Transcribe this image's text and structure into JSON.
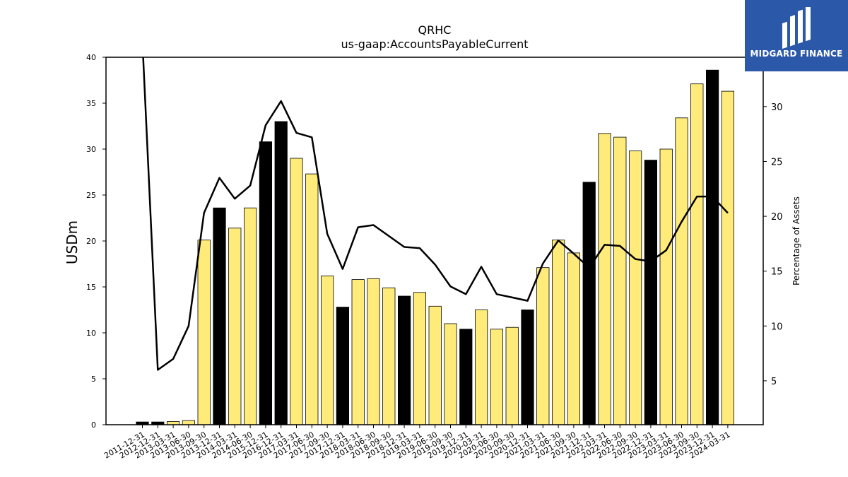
{
  "chart_data": {
    "type": "bar",
    "title": "QRHC",
    "subtitle": "us-gaap:AccountsPayableCurrent",
    "ylabel": "USDm",
    "y2label": "Percentage of Assets",
    "ylim": [
      0,
      40
    ],
    "y2lim": [
      1,
      34.5
    ],
    "yticks": [
      0,
      5,
      10,
      15,
      20,
      25,
      30,
      35,
      40
    ],
    "y2ticks": [
      5,
      10,
      15,
      20,
      25,
      30
    ],
    "categories": [
      "2011-12-31",
      "2012-12-31",
      "2013-03-31",
      "2013-06-30",
      "2013-09-30",
      "2013-12-31",
      "2014-03-31",
      "2014-06-30",
      "2015-12-31",
      "2016-12-31",
      "2017-03-31",
      "2017-06-30",
      "2017-09-30",
      "2017-12-31",
      "2018-03-31",
      "2018-06-30",
      "2018-09-30",
      "2018-12-31",
      "2019-03-31",
      "2019-06-30",
      "2019-09-30",
      "2019-12-31",
      "2020-03-31",
      "2020-06-30",
      "2020-09-30",
      "2020-12-31",
      "2021-03-31",
      "2021-06-30",
      "2021-09-30",
      "2021-12-31",
      "2022-03-31",
      "2022-06-30",
      "2022-09-30",
      "2022-12-31",
      "2023-03-31",
      "2023-06-30",
      "2023-09-30",
      "2023-12-31",
      "2024-03-31"
    ],
    "series": [
      {
        "kind": "bar",
        "values": [
          0.3,
          0.3,
          0.35,
          0.45,
          20.1,
          23.6,
          21.4,
          23.6,
          30.8,
          33.0,
          29.0,
          27.3,
          16.2,
          12.8,
          15.8,
          15.9,
          14.9,
          14.0,
          14.4,
          12.9,
          11.0,
          10.4,
          12.5,
          10.4,
          10.6,
          12.5,
          17.1,
          20.1,
          18.7,
          26.4,
          31.7,
          31.3,
          29.8,
          28.8,
          30.0,
          33.4,
          37.1,
          38.6,
          36.3
        ],
        "annual": [
          true,
          true,
          false,
          false,
          false,
          true,
          false,
          false,
          true,
          true,
          false,
          false,
          false,
          true,
          false,
          false,
          false,
          true,
          false,
          false,
          false,
          true,
          false,
          false,
          false,
          true,
          false,
          false,
          false,
          true,
          false,
          false,
          false,
          true,
          false,
          false,
          false,
          true,
          false
        ]
      },
      {
        "kind": "line",
        "axis": "right",
        "values": [
          36.0,
          6.0,
          7.0,
          10.0,
          20.3,
          23.5,
          21.6,
          22.8,
          28.3,
          30.5,
          27.6,
          27.2,
          18.4,
          15.2,
          19.0,
          19.2,
          18.2,
          17.2,
          17.1,
          15.6,
          13.6,
          12.9,
          15.4,
          12.9,
          12.6,
          12.3,
          15.7,
          17.8,
          16.6,
          15.3,
          17.4,
          17.3,
          16.1,
          15.9,
          16.9,
          19.5,
          21.8,
          21.8,
          20.3
        ]
      }
    ],
    "colors": {
      "annual_bar": "#000000",
      "quarter_bar": "#ffeb7a",
      "bar_edge": "#000000",
      "line": "#000000"
    },
    "grid": false
  },
  "logo": {
    "text": "MIDGARD FINANCE",
    "color": "#2b58a8"
  }
}
